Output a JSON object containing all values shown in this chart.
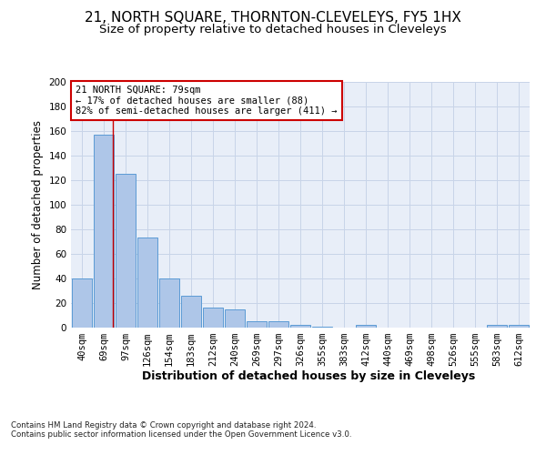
{
  "title": "21, NORTH SQUARE, THORNTON-CLEVELEYS, FY5 1HX",
  "subtitle": "Size of property relative to detached houses in Cleveleys",
  "xlabel": "Distribution of detached houses by size in Cleveleys",
  "ylabel": "Number of detached properties",
  "categories": [
    "40sqm",
    "69sqm",
    "97sqm",
    "126sqm",
    "154sqm",
    "183sqm",
    "212sqm",
    "240sqm",
    "269sqm",
    "297sqm",
    "326sqm",
    "355sqm",
    "383sqm",
    "412sqm",
    "440sqm",
    "469sqm",
    "498sqm",
    "526sqm",
    "555sqm",
    "583sqm",
    "612sqm"
  ],
  "values": [
    40,
    157,
    125,
    73,
    40,
    26,
    16,
    15,
    5,
    5,
    2,
    1,
    0,
    2,
    0,
    0,
    0,
    0,
    0,
    2,
    2
  ],
  "bar_color": "#aec6e8",
  "bar_edge_color": "#5b9bd5",
  "annotation_text": "21 NORTH SQUARE: 79sqm\n← 17% of detached houses are smaller (88)\n82% of semi-detached houses are larger (411) →",
  "annotation_box_color": "#ffffff",
  "annotation_box_edge_color": "#cc0000",
  "footer_text": "Contains HM Land Registry data © Crown copyright and database right 2024.\nContains public sector information licensed under the Open Government Licence v3.0.",
  "ylim": [
    0,
    200
  ],
  "yticks": [
    0,
    20,
    40,
    60,
    80,
    100,
    120,
    140,
    160,
    180,
    200
  ],
  "grid_color": "#c8d4e8",
  "background_color": "#e8eef8",
  "fig_background": "#ffffff",
  "title_fontsize": 11,
  "subtitle_fontsize": 9.5,
  "xlabel_fontsize": 9,
  "ylabel_fontsize": 8.5,
  "tick_fontsize": 7.5,
  "annotation_fontsize": 7.5,
  "footer_fontsize": 6.2
}
